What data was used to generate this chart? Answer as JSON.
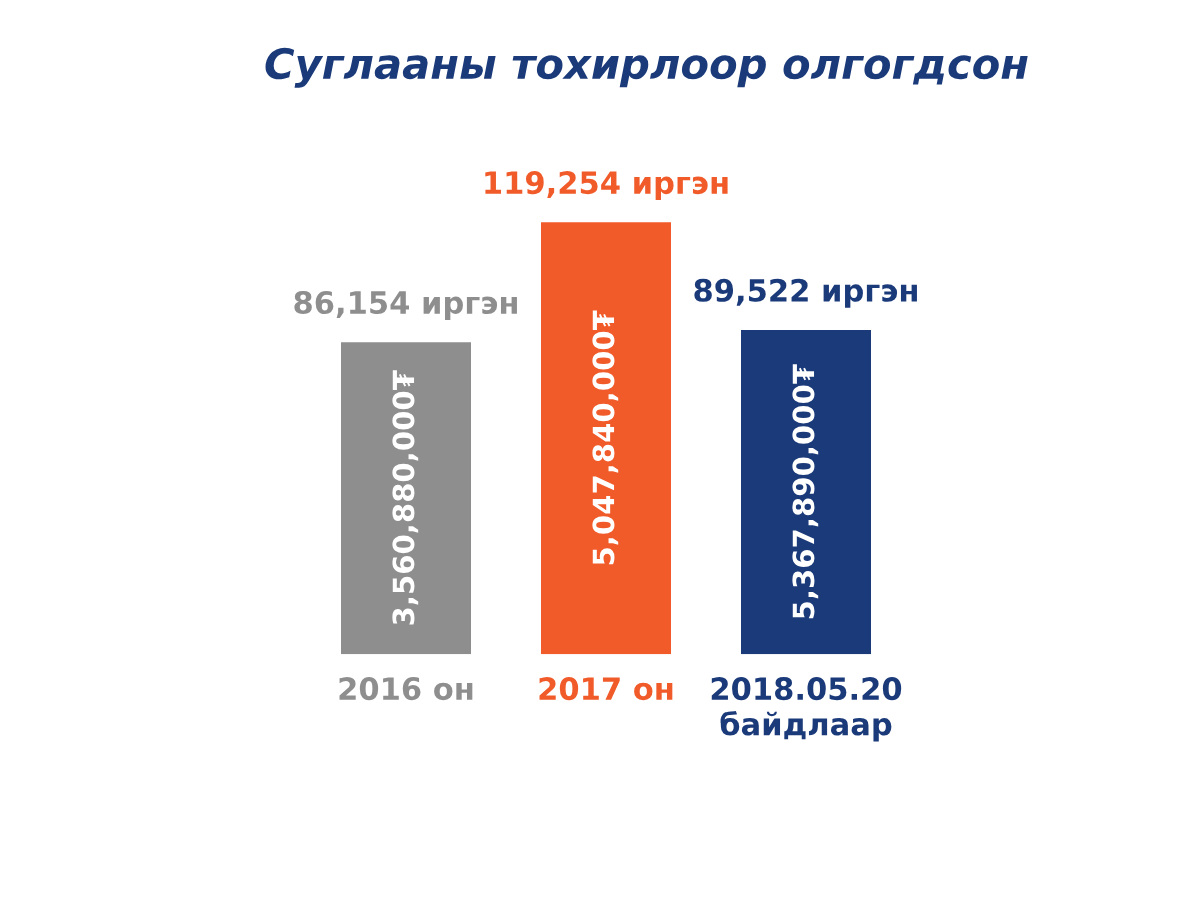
{
  "chart_data": {
    "type": "bar",
    "title": "Суглааны тохирлоор олгогдсон",
    "categories": [
      "2016 он",
      "2017 он",
      "2018.05.20\nбайдлаар"
    ],
    "values": [
      86154,
      119254,
      89522
    ],
    "colors": [
      "#8e8e8e",
      "#f15a29",
      "#1b3a7a"
    ],
    "value_labels": [
      "86,154 иргэн",
      "119,254 иргэн",
      "89,522 иргэн"
    ],
    "annotations": [
      "3,560,880,000₮",
      "5,047,840,000₮",
      "5,367,890,000₮"
    ]
  }
}
